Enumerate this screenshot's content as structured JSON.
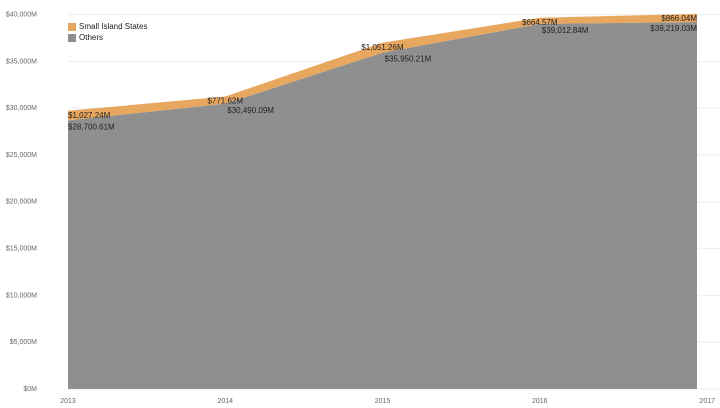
{
  "chart_data": {
    "type": "stacked_area",
    "categories": [
      "2013",
      "2014",
      "2015",
      "2016",
      "2017"
    ],
    "series": [
      {
        "name": "Small Island States",
        "color": "#e8a75f",
        "values": [
          1027.24,
          771.62,
          1051.26,
          664.57,
          866.04
        ],
        "value_labels": [
          "$1,027.24M",
          "$771.62M",
          "$1,051.26M",
          "$664.57M",
          "$866.04M"
        ]
      },
      {
        "name": "Others",
        "color": "#8f8f8f",
        "values": [
          28700.61,
          30490.09,
          35950.21,
          39012.84,
          39219.03
        ],
        "value_labels": [
          "$28,700.61M",
          "$30,490.09M",
          "$35,950.21M",
          "$39,012.84M",
          "$39,219.03M"
        ]
      }
    ],
    "ylim": [
      0,
      40500
    ],
    "yticks": [
      {
        "value": 0,
        "label": "$0M"
      },
      {
        "value": 5000,
        "label": "$5,000M"
      },
      {
        "value": 10000,
        "label": "$10,000M"
      },
      {
        "value": 15000,
        "label": "$15,000M"
      },
      {
        "value": 20000,
        "label": "$20,000M"
      },
      {
        "value": 25000,
        "label": "$25,000M"
      },
      {
        "value": 30000,
        "label": "$30,000M"
      },
      {
        "value": 35000,
        "label": "$35,000M"
      },
      {
        "value": 40000,
        "label": "$40,000M"
      }
    ],
    "grid": true,
    "legend": "top-left"
  }
}
